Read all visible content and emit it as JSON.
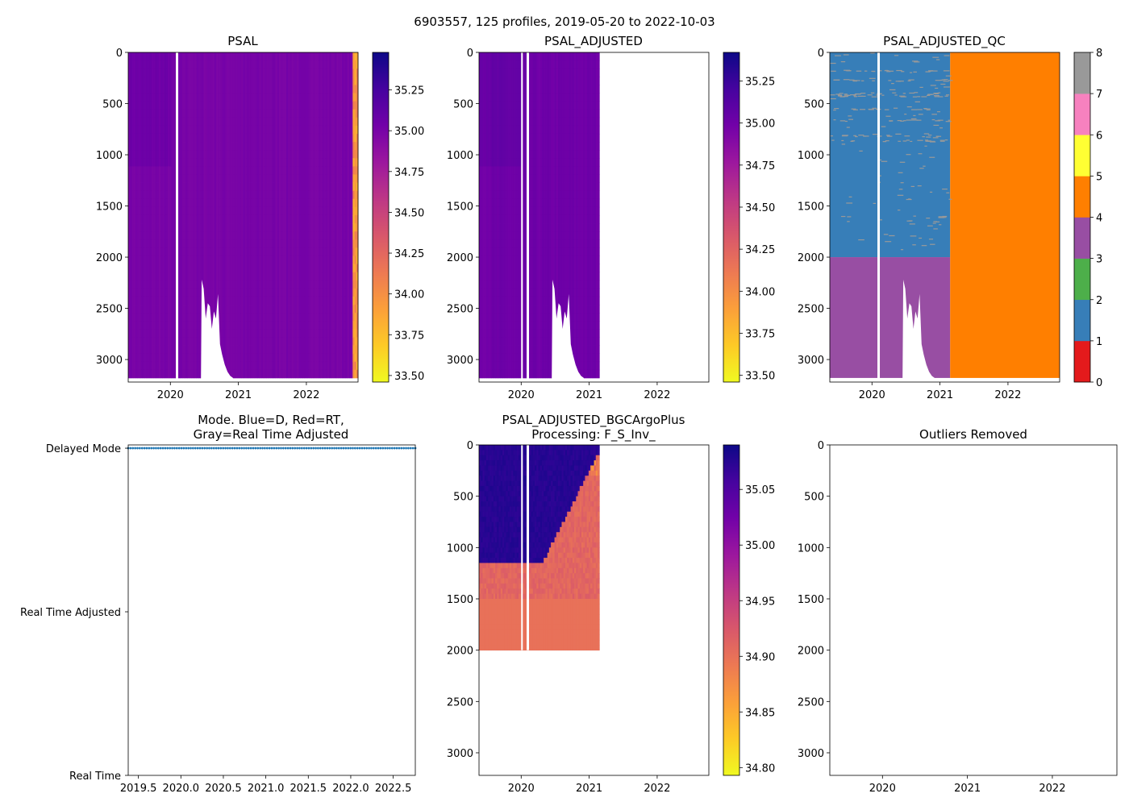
{
  "figure": {
    "suptitle": "6903557, 125 profiles, 2019-05-20 to 2022-10-03"
  },
  "colors": {
    "plasma_r": [
      "#f0f921",
      "#fdca26",
      "#fb9f3a",
      "#ed7953",
      "#d8576b",
      "#bd3786",
      "#9c179e",
      "#7201a8",
      "#46039f",
      "#0d0887"
    ],
    "qc": [
      "#e41a1c",
      "#377eb8",
      "#4daf4a",
      "#984ea3",
      "#ff7f00",
      "#ffff33",
      "#a65628",
      "#f781bf",
      "#999999"
    ],
    "mode_marker": "#1f77b4"
  },
  "chart_data": [
    {
      "id": "psal",
      "type": "heatmap",
      "title": "PSAL",
      "x_ticks": [
        "2020",
        "2021",
        "2022"
      ],
      "x_tick_values": [
        2020,
        2021,
        2022
      ],
      "xlim": [
        2019.38,
        2022.76
      ],
      "y_ticks": [
        "0",
        "500",
        "1000",
        "1500",
        "2000",
        "2500",
        "3000"
      ],
      "y_tick_values": [
        0,
        500,
        1000,
        1500,
        2000,
        2500,
        3000
      ],
      "ylim": [
        3220,
        0
      ],
      "colorbar": {
        "ticks": [
          "33.50",
          "33.75",
          "34.00",
          "34.25",
          "34.50",
          "34.75",
          "35.00",
          "35.25"
        ],
        "tick_values": [
          33.5,
          33.75,
          34.0,
          34.25,
          34.5,
          34.75,
          35.0,
          35.25
        ],
        "range": [
          33.46,
          35.48
        ]
      },
      "data_end": 2022.76,
      "value_shallow": 35.05,
      "value_deep": 34.9,
      "transition_depth": 1150
    },
    {
      "id": "psal_adjusted",
      "type": "heatmap",
      "title": "PSAL_ADJUSTED",
      "x_ticks": [
        "2020",
        "2021",
        "2022"
      ],
      "x_tick_values": [
        2020,
        2021,
        2022
      ],
      "xlim": [
        2019.38,
        2022.76
      ],
      "y_ticks": [
        "0",
        "500",
        "1000",
        "1500",
        "2000",
        "2500",
        "3000"
      ],
      "y_tick_values": [
        0,
        500,
        1000,
        1500,
        2000,
        2500,
        3000
      ],
      "ylim": [
        3220,
        0
      ],
      "colorbar": {
        "ticks": [
          "33.50",
          "33.75",
          "34.00",
          "34.25",
          "34.50",
          "34.75",
          "35.00",
          "35.25"
        ],
        "tick_values": [
          33.5,
          33.75,
          34.0,
          34.25,
          34.5,
          34.75,
          35.0,
          35.25
        ],
        "range": [
          33.46,
          35.42
        ]
      },
      "data_end": 2021.15,
      "value_shallow": 35.05,
      "value_deep": 34.9,
      "transition_depth": 1150
    },
    {
      "id": "psal_adjusted_qc",
      "type": "heatmap",
      "title": "PSAL_ADJUSTED_QC",
      "x_ticks": [
        "2020",
        "2021",
        "2022"
      ],
      "x_tick_values": [
        2020,
        2021,
        2022
      ],
      "xlim": [
        2019.38,
        2022.76
      ],
      "y_ticks": [
        "0",
        "500",
        "1000",
        "1500",
        "2000",
        "2500",
        "3000"
      ],
      "y_tick_values": [
        0,
        500,
        1000,
        1500,
        2000,
        2500,
        3000
      ],
      "ylim": [
        3220,
        0
      ],
      "colorbar": {
        "ticks": [
          "0",
          "1",
          "2",
          "3",
          "4",
          "5",
          "6",
          "7",
          "8"
        ],
        "tick_values": [
          0,
          1,
          2,
          3,
          4,
          5,
          6,
          7,
          8
        ],
        "range": [
          0,
          8
        ]
      },
      "regions": [
        {
          "qc": 1,
          "x": [
            2019.38,
            2021.15
          ],
          "depth": [
            0,
            2000
          ]
        },
        {
          "qc": 3,
          "x": [
            2019.38,
            2021.15
          ],
          "depth": [
            2000,
            3180
          ]
        },
        {
          "qc": 4,
          "x": [
            2021.15,
            2022.76
          ],
          "depth": [
            0,
            3180
          ]
        }
      ]
    },
    {
      "id": "mode",
      "type": "scatter",
      "title_lines": [
        "Mode. Blue=D, Red=RT,",
        "Gray=Real Time Adjusted"
      ],
      "x_ticks": [
        "2019.5",
        "2020.0",
        "2020.5",
        "2021.0",
        "2021.5",
        "2022.0",
        "2022.5"
      ],
      "x_tick_values": [
        2019.5,
        2020.0,
        2020.5,
        2021.0,
        2021.5,
        2022.0,
        2022.5
      ],
      "xlim": [
        2019.38,
        2022.76
      ],
      "y_categories": [
        "Delayed Mode",
        "Real Time Adjusted",
        "Real Time"
      ],
      "y_category_values": [
        2,
        1,
        0
      ],
      "ylim": [
        0,
        2.02
      ],
      "points_mode": 2,
      "points_count": 125,
      "points_x_range": [
        2019.38,
        2022.76
      ]
    },
    {
      "id": "bgc",
      "type": "heatmap",
      "title_lines": [
        "PSAL_ADJUSTED_BGCArgoPlus",
        "Processing: F_S_Inv_"
      ],
      "x_ticks": [
        "2020",
        "2021",
        "2022"
      ],
      "x_tick_values": [
        2020,
        2021,
        2022
      ],
      "xlim": [
        2019.38,
        2022.76
      ],
      "y_ticks": [
        "0",
        "500",
        "1000",
        "1500",
        "2000",
        "2500",
        "3000"
      ],
      "y_tick_values": [
        0,
        500,
        1000,
        1500,
        2000,
        2500,
        3000
      ],
      "ylim": [
        3220,
        0
      ],
      "colorbar": {
        "ticks": [
          "34.80",
          "34.85",
          "34.90",
          "34.95",
          "35.00",
          "35.05"
        ],
        "tick_values": [
          34.8,
          34.85,
          34.9,
          34.95,
          35.0,
          35.05
        ],
        "range": [
          34.793,
          35.09
        ]
      },
      "data_end": 2021.15,
      "max_depth": 2000,
      "value_shallow": 35.08,
      "value_deep": 34.9,
      "transition_depth": 1150
    },
    {
      "id": "outliers",
      "type": "scatter",
      "title": "Outliers Removed",
      "x_ticks": [
        "2020",
        "2021",
        "2022"
      ],
      "x_tick_values": [
        2020,
        2021,
        2022
      ],
      "xlim": [
        2019.38,
        2022.76
      ],
      "y_ticks": [
        "0",
        "500",
        "1000",
        "1500",
        "2000",
        "2500",
        "3000"
      ],
      "y_tick_values": [
        0,
        500,
        1000,
        1500,
        2000,
        2500,
        3000
      ],
      "ylim": [
        3220,
        0
      ]
    }
  ]
}
